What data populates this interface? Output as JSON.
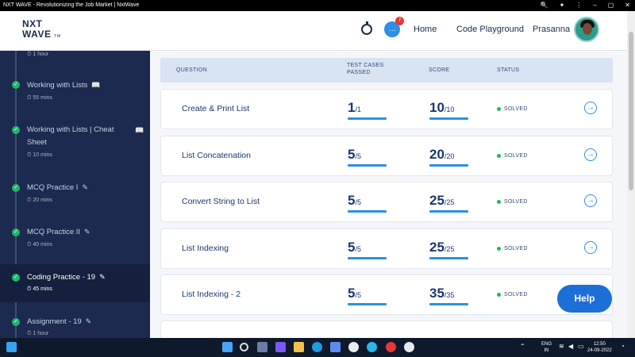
{
  "window": {
    "title": "NXT WAVE - Revolutionizing the Job Market | NxtWave"
  },
  "logo": {
    "line1": "NXT",
    "line2": "WAVE",
    "tm": "TM"
  },
  "nav": {
    "chat_badge": "7",
    "home": "Home",
    "playground": "Code Playground",
    "user": "Prasanna"
  },
  "sidebar": {
    "items": [
      {
        "title": "",
        "time": "1 hour",
        "icon": ""
      },
      {
        "title": "Working with Lists",
        "time": "55 mins",
        "icon": "book-icon"
      },
      {
        "title": "Working with Lists | Cheat Sheet",
        "time": "10 mins",
        "icon": "book-icon"
      },
      {
        "title": "MCQ Practice I",
        "time": "20 mins",
        "icon": "edit-icon"
      },
      {
        "title": "MCQ Practice II",
        "time": "40 mins",
        "icon": "edit-icon"
      },
      {
        "title": "Coding Practice - 19",
        "time": "45 mins",
        "icon": "edit-icon",
        "active": true
      },
      {
        "title": "Assignment - 19",
        "time": "1 hour",
        "icon": "edit-icon"
      }
    ]
  },
  "table": {
    "headers": {
      "question": "QUESTION",
      "tests1": "TEST CASES",
      "tests2": "PASSED",
      "score": "SCORE",
      "status": "STATUS"
    },
    "rows": [
      {
        "question": "Create & Print List",
        "passed": "1",
        "passed_total": "/1",
        "score": "10",
        "score_total": "/10",
        "status": "SOLVED"
      },
      {
        "question": "List Concatenation",
        "passed": "5",
        "passed_total": "/5",
        "score": "20",
        "score_total": "/20",
        "status": "SOLVED"
      },
      {
        "question": "Convert String to List",
        "passed": "5",
        "passed_total": "/5",
        "score": "25",
        "score_total": "/25",
        "status": "SOLVED"
      },
      {
        "question": "List Indexing",
        "passed": "5",
        "passed_total": "/5",
        "score": "25",
        "score_total": "/25",
        "status": "SOLVED"
      },
      {
        "question": "List Indexing - 2",
        "passed": "5",
        "passed_total": "/5",
        "score": "35",
        "score_total": "/35",
        "status": "SOLVED"
      }
    ]
  },
  "help": {
    "label": "Help"
  },
  "taskbar": {
    "lang1": "ENG",
    "lang2": "IN",
    "time": "12:50",
    "date": "24-09-2022"
  },
  "colors": {
    "sidebar": "#1b2a4e",
    "accent": "#2d8fe6",
    "solved": "#20b66b",
    "help": "#1d6fd8"
  }
}
